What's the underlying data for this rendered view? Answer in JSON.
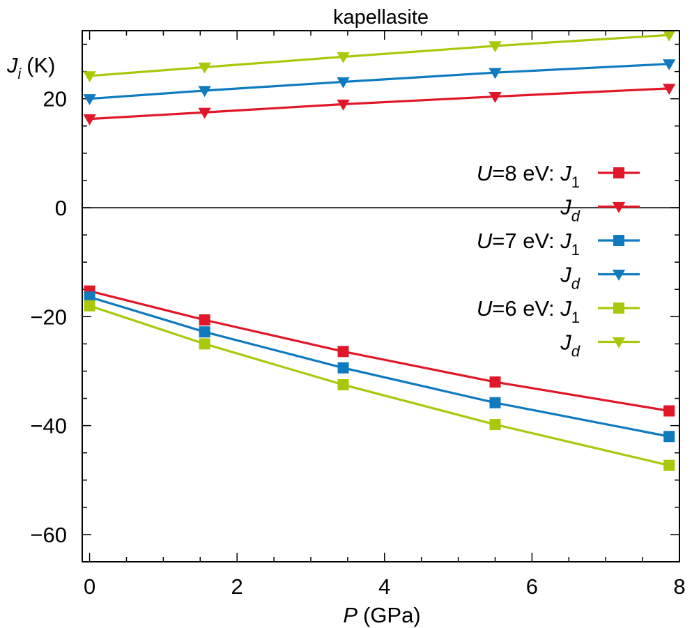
{
  "chart_data": {
    "type": "line",
    "title": "kapellasite",
    "xlabel": {
      "var": "P",
      "unit": "(GPa)"
    },
    "ylabel": {
      "var": "J",
      "sub": "i",
      "unit": "(K)"
    },
    "xlim": [
      -0.1,
      8
    ],
    "ylim": [
      -65,
      32.5
    ],
    "xticks": [
      0,
      2,
      4,
      6,
      8
    ],
    "yticks": [
      -60,
      -40,
      -20,
      0,
      20
    ],
    "x": [
      0,
      1.56,
      3.44,
      5.5,
      7.86
    ],
    "series": [
      {
        "name": "U=8 eV: J1",
        "legend_prefix": {
          "var": "U",
          "rest": "=8 eV: "
        },
        "legend_var": "J",
        "legend_sub": "1",
        "color": "#e01729",
        "marker": "square",
        "values": [
          -15.3,
          -20.6,
          -26.4,
          -32.0,
          -37.3
        ]
      },
      {
        "name": "U=8 eV: Jd",
        "legend_var": "J",
        "legend_sub": "d",
        "color": "#e01729",
        "marker": "triangle-down",
        "values": [
          16.3,
          17.5,
          19.0,
          20.4,
          21.9
        ]
      },
      {
        "name": "U=7 eV: J1",
        "legend_prefix": {
          "var": "U",
          "rest": "=7 eV: "
        },
        "legend_var": "J",
        "legend_sub": "1",
        "color": "#0f7bbe",
        "marker": "square",
        "values": [
          -16.4,
          -22.8,
          -29.4,
          -35.8,
          -42.0
        ]
      },
      {
        "name": "U=7 eV: Jd",
        "legend_var": "J",
        "legend_sub": "d",
        "color": "#0f7bbe",
        "marker": "triangle-down",
        "values": [
          20.0,
          21.5,
          23.1,
          24.8,
          26.4
        ]
      },
      {
        "name": "U=6 eV: J1",
        "legend_prefix": {
          "var": "U",
          "rest": "=6 eV: "
        },
        "legend_var": "J",
        "legend_sub": "1",
        "color": "#a8c90b",
        "marker": "square",
        "values": [
          -18.0,
          -25.0,
          -32.5,
          -39.8,
          -47.3
        ]
      },
      {
        "name": "U=6 eV: Jd",
        "legend_var": "J",
        "legend_sub": "d",
        "color": "#a8c90b",
        "marker": "triangle-down",
        "values": [
          24.2,
          25.8,
          27.7,
          29.7,
          31.7
        ]
      }
    ],
    "zero_line": true,
    "grid": false,
    "legend_position": "right"
  }
}
